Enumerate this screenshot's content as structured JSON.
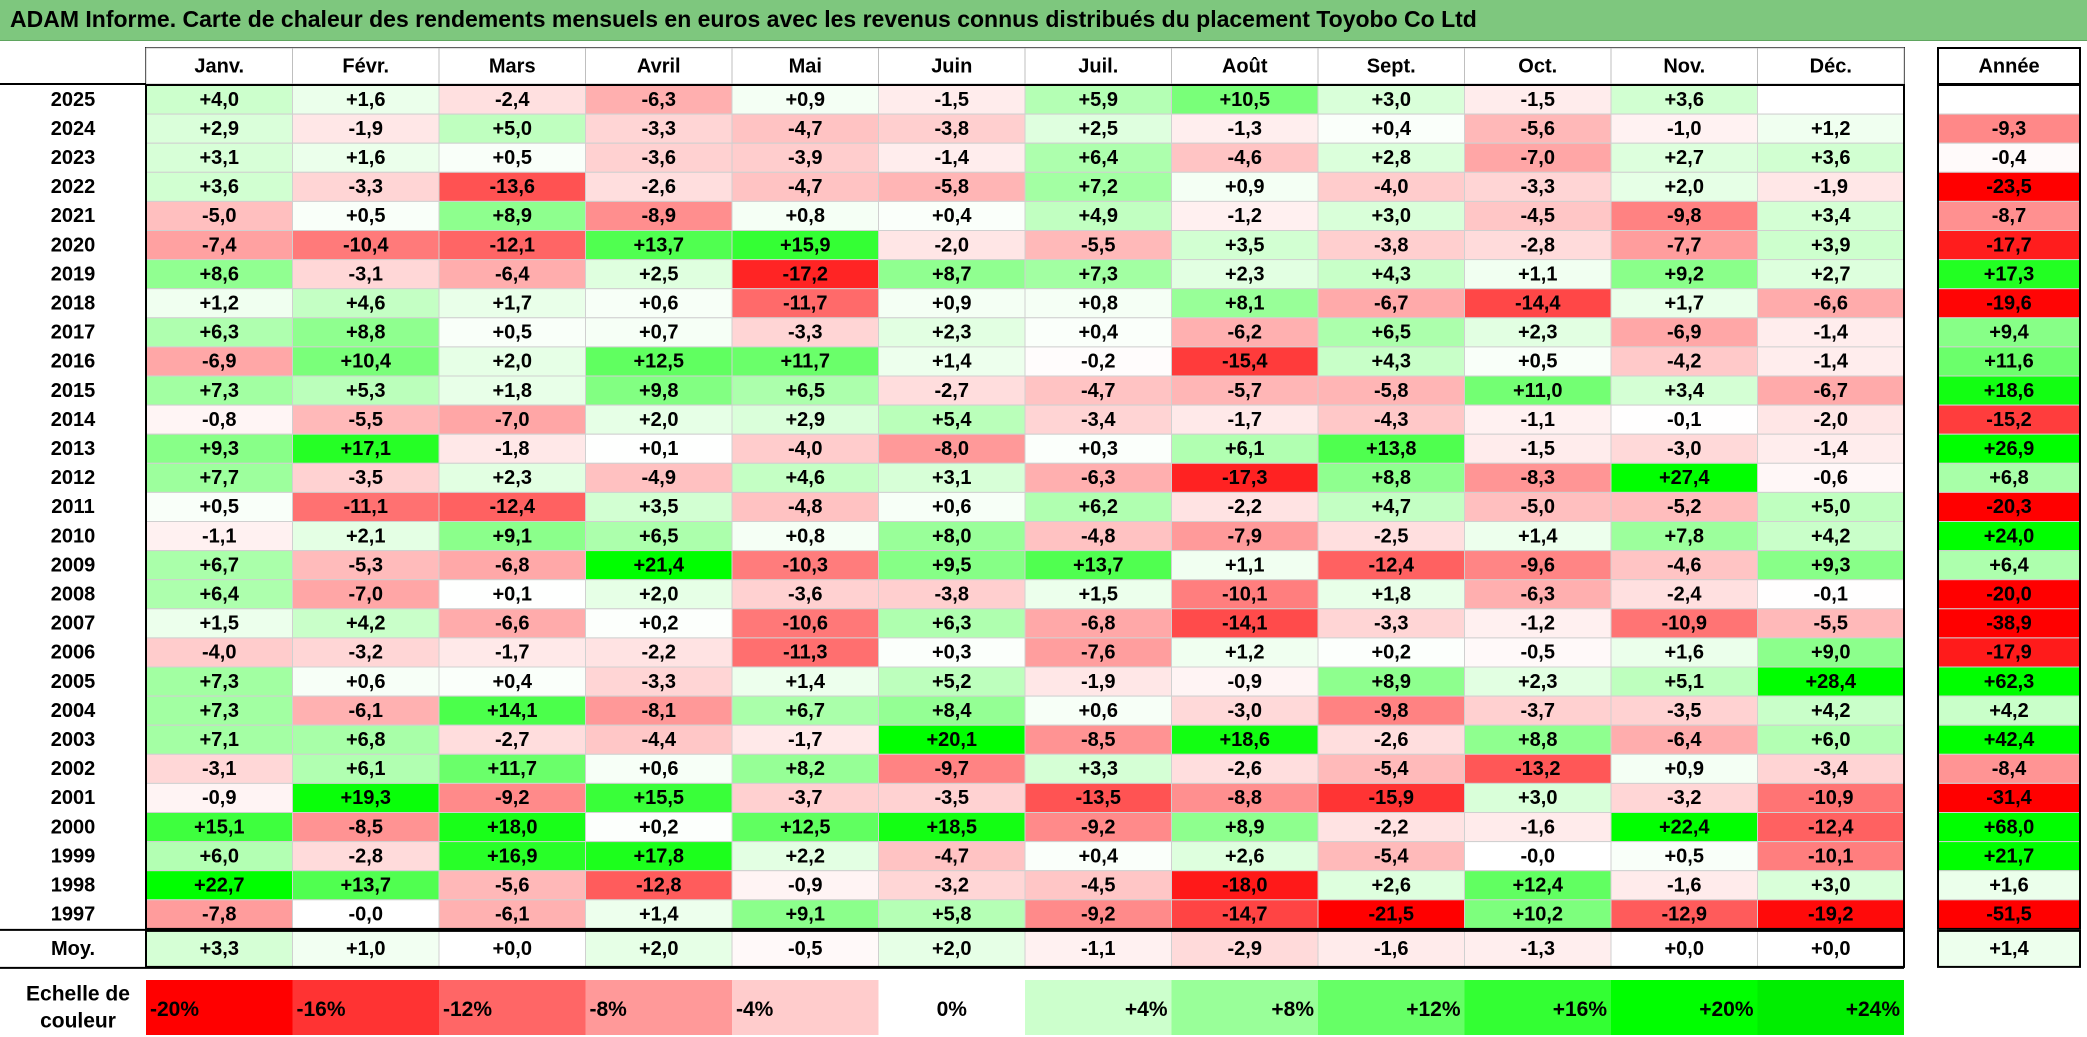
{
  "title": "ADAM Informe. Carte de chaleur des rendements mensuels en euros avec les revenus connus distribués du placement Toyobo Co Ltd",
  "chart_data": {
    "type": "heatmap",
    "months": [
      "Janv.",
      "Févr.",
      "Mars",
      "Avril",
      "Mai",
      "Juin",
      "Juil.",
      "Août",
      "Sept.",
      "Oct.",
      "Nov.",
      "Déc."
    ],
    "annual_header": "Année",
    "rows": [
      {
        "year": "2025",
        "values": [
          "+4,0",
          "+1,6",
          "-2,4",
          "-6,3",
          "+0,9",
          "-1,5",
          "+5,9",
          "+10,5",
          "+3,0",
          "-1,5",
          "+3,6",
          ""
        ],
        "annual": ""
      },
      {
        "year": "2024",
        "values": [
          "+2,9",
          "-1,9",
          "+5,0",
          "-3,3",
          "-4,7",
          "-3,8",
          "+2,5",
          "-1,3",
          "+0,4",
          "-5,6",
          "-1,0",
          "+1,2"
        ],
        "annual": "-9,3"
      },
      {
        "year": "2023",
        "values": [
          "+3,1",
          "+1,6",
          "+0,5",
          "-3,6",
          "-3,9",
          "-1,4",
          "+6,4",
          "-4,6",
          "+2,8",
          "-7,0",
          "+2,7",
          "+3,6"
        ],
        "annual": "-0,4"
      },
      {
        "year": "2022",
        "values": [
          "+3,6",
          "-3,3",
          "-13,6",
          "-2,6",
          "-4,7",
          "-5,8",
          "+7,2",
          "+0,9",
          "-4,0",
          "-3,3",
          "+2,0",
          "-1,9"
        ],
        "annual": "-23,5"
      },
      {
        "year": "2021",
        "values": [
          "-5,0",
          "+0,5",
          "+8,9",
          "-8,9",
          "+0,8",
          "+0,4",
          "+4,9",
          "-1,2",
          "+3,0",
          "-4,5",
          "-9,8",
          "+3,4"
        ],
        "annual": "-8,7"
      },
      {
        "year": "2020",
        "values": [
          "-7,4",
          "-10,4",
          "-12,1",
          "+13,7",
          "+15,9",
          "-2,0",
          "-5,5",
          "+3,5",
          "-3,8",
          "-2,8",
          "-7,7",
          "+3,9"
        ],
        "annual": "-17,7"
      },
      {
        "year": "2019",
        "values": [
          "+8,6",
          "-3,1",
          "-6,4",
          "+2,5",
          "-17,2",
          "+8,7",
          "+7,3",
          "+2,3",
          "+4,3",
          "+1,1",
          "+9,2",
          "+2,7"
        ],
        "annual": "+17,3"
      },
      {
        "year": "2018",
        "values": [
          "+1,2",
          "+4,6",
          "+1,7",
          "+0,6",
          "-11,7",
          "+0,9",
          "+0,8",
          "+8,1",
          "-6,7",
          "-14,4",
          "+1,7",
          "-6,6"
        ],
        "annual": "-19,6"
      },
      {
        "year": "2017",
        "values": [
          "+6,3",
          "+8,8",
          "+0,5",
          "+0,7",
          "-3,3",
          "+2,3",
          "+0,4",
          "-6,2",
          "+6,5",
          "+2,3",
          "-6,9",
          "-1,4"
        ],
        "annual": "+9,4"
      },
      {
        "year": "2016",
        "values": [
          "-6,9",
          "+10,4",
          "+2,0",
          "+12,5",
          "+11,7",
          "+1,4",
          "-0,2",
          "-15,4",
          "+4,3",
          "+0,5",
          "-4,2",
          "-1,4"
        ],
        "annual": "+11,6"
      },
      {
        "year": "2015",
        "values": [
          "+7,3",
          "+5,3",
          "+1,8",
          "+9,8",
          "+6,5",
          "-2,7",
          "-4,7",
          "-5,7",
          "-5,8",
          "+11,0",
          "+3,4",
          "-6,7"
        ],
        "annual": "+18,6"
      },
      {
        "year": "2014",
        "values": [
          "-0,8",
          "-5,5",
          "-7,0",
          "+2,0",
          "+2,9",
          "+5,4",
          "-3,4",
          "-1,7",
          "-4,3",
          "-1,1",
          "-0,1",
          "-2,0"
        ],
        "annual": "-15,2"
      },
      {
        "year": "2013",
        "values": [
          "+9,3",
          "+17,1",
          "-1,8",
          "+0,1",
          "-4,0",
          "-8,0",
          "+0,3",
          "+6,1",
          "+13,8",
          "-1,5",
          "-3,0",
          "-1,4"
        ],
        "annual": "+26,9"
      },
      {
        "year": "2012",
        "values": [
          "+7,7",
          "-3,5",
          "+2,3",
          "-4,9",
          "+4,6",
          "+3,1",
          "-6,3",
          "-17,3",
          "+8,8",
          "-8,3",
          "+27,4",
          "-0,6"
        ],
        "annual": "+6,8"
      },
      {
        "year": "2011",
        "values": [
          "+0,5",
          "-11,1",
          "-12,4",
          "+3,5",
          "-4,8",
          "+0,6",
          "+6,2",
          "-2,2",
          "+4,7",
          "-5,0",
          "-5,2",
          "+5,0"
        ],
        "annual": "-20,3"
      },
      {
        "year": "2010",
        "values": [
          "-1,1",
          "+2,1",
          "+9,1",
          "+6,5",
          "+0,8",
          "+8,0",
          "-4,8",
          "-7,9",
          "-2,5",
          "+1,4",
          "+7,8",
          "+4,2"
        ],
        "annual": "+24,0"
      },
      {
        "year": "2009",
        "values": [
          "+6,7",
          "-5,3",
          "-6,8",
          "+21,4",
          "-10,3",
          "+9,5",
          "+13,7",
          "+1,1",
          "-12,4",
          "-9,6",
          "-4,6",
          "+9,3"
        ],
        "annual": "+6,4"
      },
      {
        "year": "2008",
        "values": [
          "+6,4",
          "-7,0",
          "+0,1",
          "+2,0",
          "-3,6",
          "-3,8",
          "+1,5",
          "-10,1",
          "+1,8",
          "-6,3",
          "-2,4",
          "-0,1"
        ],
        "annual": "-20,0"
      },
      {
        "year": "2007",
        "values": [
          "+1,5",
          "+4,2",
          "-6,6",
          "+0,2",
          "-10,6",
          "+6,3",
          "-6,8",
          "-14,1",
          "-3,3",
          "-1,2",
          "-10,9",
          "-5,5"
        ],
        "annual": "-38,9"
      },
      {
        "year": "2006",
        "values": [
          "-4,0",
          "-3,2",
          "-1,7",
          "-2,2",
          "-11,3",
          "+0,3",
          "-7,6",
          "+1,2",
          "+0,2",
          "-0,5",
          "+1,6",
          "+9,0"
        ],
        "annual": "-17,9"
      },
      {
        "year": "2005",
        "values": [
          "+7,3",
          "+0,6",
          "+0,4",
          "-3,3",
          "+1,4",
          "+5,2",
          "-1,9",
          "-0,9",
          "+8,9",
          "+2,3",
          "+5,1",
          "+28,4"
        ],
        "annual": "+62,3"
      },
      {
        "year": "2004",
        "values": [
          "+7,3",
          "-6,1",
          "+14,1",
          "-8,1",
          "+6,7",
          "+8,4",
          "+0,6",
          "-3,0",
          "-9,8",
          "-3,7",
          "-3,5",
          "+4,2"
        ],
        "annual": "+4,2"
      },
      {
        "year": "2003",
        "values": [
          "+7,1",
          "+6,8",
          "-2,7",
          "-4,4",
          "-1,7",
          "+20,1",
          "-8,5",
          "+18,6",
          "-2,6",
          "+8,8",
          "-6,4",
          "+6,0"
        ],
        "annual": "+42,4"
      },
      {
        "year": "2002",
        "values": [
          "-3,1",
          "+6,1",
          "+11,7",
          "+0,6",
          "+8,2",
          "-9,7",
          "+3,3",
          "-2,6",
          "-5,4",
          "-13,2",
          "+0,9",
          "-3,4"
        ],
        "annual": "-8,4"
      },
      {
        "year": "2001",
        "values": [
          "-0,9",
          "+19,3",
          "-9,2",
          "+15,5",
          "-3,7",
          "-3,5",
          "-13,5",
          "-8,8",
          "-15,9",
          "+3,0",
          "-3,2",
          "-10,9"
        ],
        "annual": "-31,4"
      },
      {
        "year": "2000",
        "values": [
          "+15,1",
          "-8,5",
          "+18,0",
          "+0,2",
          "+12,5",
          "+18,5",
          "-9,2",
          "+8,9",
          "-2,2",
          "-1,6",
          "+22,4",
          "-12,4"
        ],
        "annual": "+68,0"
      },
      {
        "year": "1999",
        "values": [
          "+6,0",
          "-2,8",
          "+16,9",
          "+17,8",
          "+2,2",
          "-4,7",
          "+0,4",
          "+2,6",
          "-5,4",
          "-0,0",
          "+0,5",
          "-10,1"
        ],
        "annual": "+21,7"
      },
      {
        "year": "1998",
        "values": [
          "+22,7",
          "+13,7",
          "-5,6",
          "-12,8",
          "-0,9",
          "-3,2",
          "-4,5",
          "-18,0",
          "+2,6",
          "+12,4",
          "-1,6",
          "+3,0"
        ],
        "annual": "+1,6"
      },
      {
        "year": "1997",
        "values": [
          "-7,8",
          "-0,0",
          "-6,1",
          "+1,4",
          "+9,1",
          "+5,8",
          "-9,2",
          "-14,7",
          "-21,5",
          "+10,2",
          "-12,9",
          "-19,2"
        ],
        "annual": "-51,5"
      }
    ],
    "average": {
      "label": "Moy.",
      "values": [
        "+3,3",
        "+1,0",
        "+0,0",
        "+2,0",
        "-0,5",
        "+2,0",
        "-1,1",
        "-2,9",
        "-1,6",
        "-1,3",
        "+0,0",
        "+0,0"
      ],
      "annual": "+1,4"
    },
    "color_scale": {
      "label_line1": "Echelle de",
      "label_line2": "couleur",
      "steps": [
        {
          "label": "-20%",
          "color": "#ff0000"
        },
        {
          "label": "-16%",
          "color": "#ff3333"
        },
        {
          "label": "-12%",
          "color": "#ff6666"
        },
        {
          "label": "-8%",
          "color": "#ff9999"
        },
        {
          "label": "-4%",
          "color": "#ffcccc"
        },
        {
          "label": "0%",
          "color": "#ffffff"
        },
        {
          "label": "+4%",
          "color": "#ccffcc"
        },
        {
          "label": "+8%",
          "color": "#99ff99"
        },
        {
          "label": "+12%",
          "color": "#66ff66"
        },
        {
          "label": "+16%",
          "color": "#33ff33"
        },
        {
          "label": "+20%",
          "color": "#00ff00"
        },
        {
          "label": "+24%",
          "color": "#00ee00"
        }
      ]
    }
  }
}
